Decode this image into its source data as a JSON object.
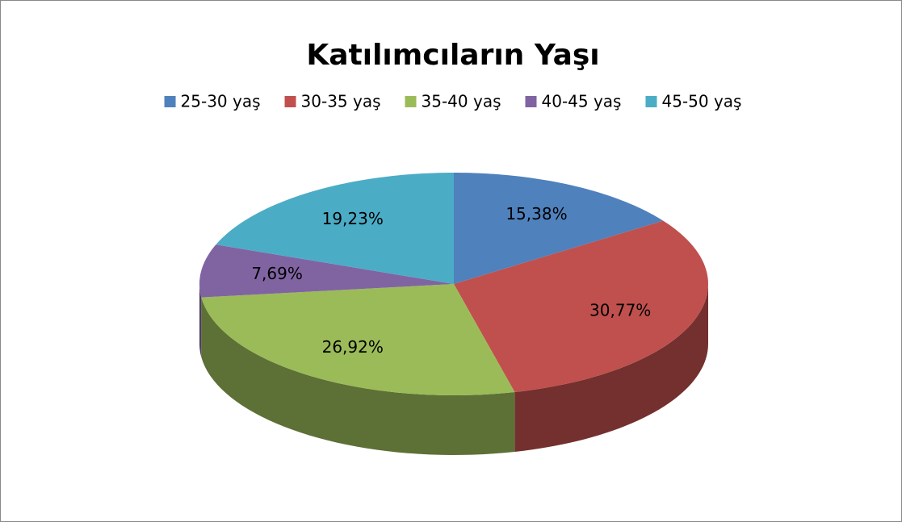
{
  "chart_data": {
    "type": "pie3d",
    "title": "Katılımcıların Yaşı",
    "categories": [
      "25-30 yaş",
      "30-35 yaş",
      "35-40 yaş",
      "40-45 yaş",
      "45-50 yaş"
    ],
    "values": [
      15.38,
      30.77,
      26.92,
      7.69,
      19.23
    ],
    "value_labels": [
      "15,38%",
      "30,77%",
      "26,92%",
      "7,69%",
      "19,23%"
    ],
    "colors": [
      "#4f81bd",
      "#c0504d",
      "#9bbb59",
      "#8064a2",
      "#4bacc6"
    ],
    "legend": "top"
  }
}
